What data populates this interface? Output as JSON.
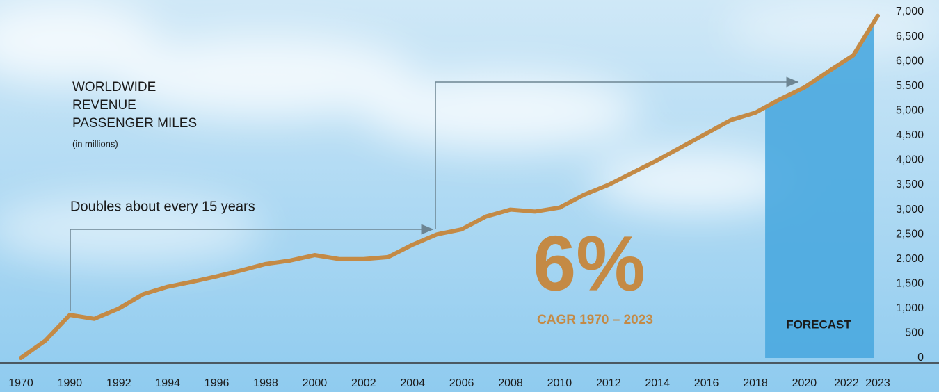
{
  "chart_data": {
    "type": "line",
    "title": [
      "WORLDWIDE",
      "REVENUE",
      "PASSENGER MILES"
    ],
    "subtitle": "(in millions)",
    "annotations": [
      "Doubles about every 15 years",
      "6%",
      "CAGR 1970 – 2023",
      "FORECAST"
    ],
    "categories": [
      "1970",
      null,
      "1990",
      null,
      "1992",
      null,
      "1994",
      null,
      "1996",
      null,
      "1998",
      null,
      "2000",
      null,
      "2002",
      null,
      "2004",
      null,
      "2006",
      null,
      "2008",
      null,
      "2010",
      null,
      "2012",
      null,
      "2014",
      null,
      "2016",
      null,
      "2018",
      null,
      "2020",
      null,
      "2022",
      "2023"
    ],
    "series": [
      {
        "color": "#c48a45",
        "values": [
          0,
          350,
          870,
          790,
          1000,
          1290,
          1440,
          1540,
          1650,
          1770,
          1900,
          1970,
          2080,
          2000,
          2000,
          2040,
          2290,
          2500,
          2600,
          2860,
          3000,
          2960,
          3040,
          3300,
          3500,
          3750,
          4000,
          4270,
          4540,
          4810,
          4960,
          5230,
          5470,
          5800,
          6120,
          6920
        ]
      }
    ],
    "ylim": [
      0,
      7000
    ],
    "yticks": [
      0,
      500,
      {
        "value": 1000,
        "label": "1,000"
      },
      {
        "value": 1500,
        "label": "1,500"
      },
      {
        "value": 2000,
        "label": "2,000"
      },
      {
        "value": 2500,
        "label": "2,500"
      },
      {
        "value": 3000,
        "label": "3,000"
      },
      {
        "value": 3500,
        "label": "3,500"
      },
      {
        "value": 4000,
        "label": "4,000"
      },
      {
        "value": 4500,
        "label": "4,500"
      },
      {
        "value": 5000,
        "label": "5,000"
      },
      {
        "value": 5500,
        "label": "5,500"
      },
      {
        "value": 6000,
        "label": "6,000"
      },
      {
        "value": 6500,
        "label": "6,500"
      },
      {
        "value": 7000,
        "label": "7,000"
      }
    ],
    "forecast_color": "#4aa8df"
  }
}
